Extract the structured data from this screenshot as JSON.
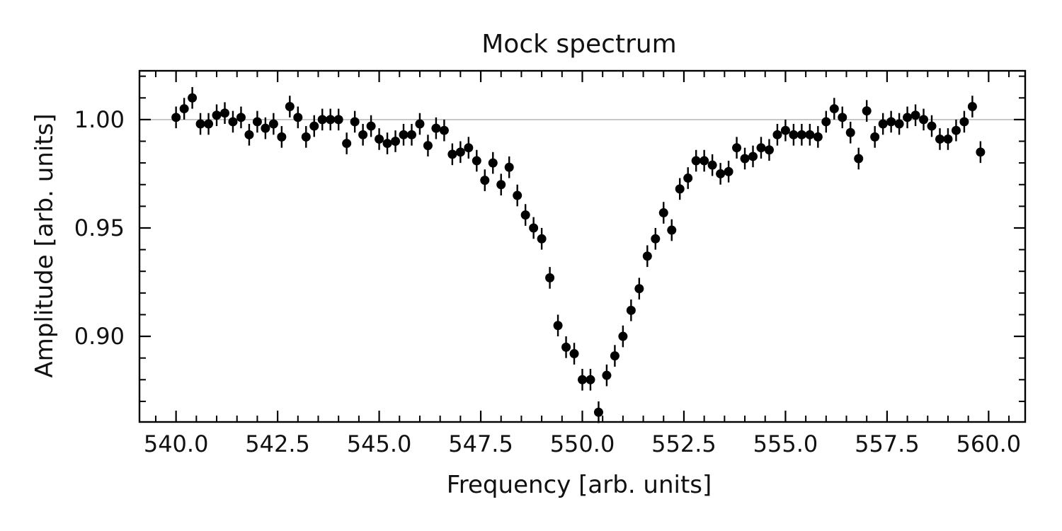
{
  "chart_data": {
    "type": "scatter",
    "title": "Mock spectrum",
    "xlabel": "Frequency [arb. units]",
    "ylabel": "Amplitude [arb. units]",
    "xlim": [
      539.1,
      560.9
    ],
    "ylim": [
      0.8605,
      1.0225
    ],
    "x_ticks": [
      540.0,
      542.5,
      545.0,
      547.5,
      550.0,
      552.5,
      555.0,
      557.5,
      560.0
    ],
    "x_tick_labels": [
      "540.0",
      "542.5",
      "545.0",
      "547.5",
      "550.0",
      "552.5",
      "555.0",
      "557.5",
      "560.0"
    ],
    "x_minor_step": 0.5,
    "y_ticks": [
      0.9,
      0.95,
      1.0
    ],
    "y_tick_labels": [
      "0.90",
      "0.95",
      "1.00"
    ],
    "y_minor_step": 0.01,
    "reference_line": 1.0,
    "error": 0.005,
    "grid": false,
    "colors": {
      "points": "#000000",
      "reference_line": "#bbbbbb",
      "axes": "#000000"
    },
    "series": [
      {
        "x": [
          540.0,
          540.2,
          540.4,
          540.6,
          540.8,
          541.0,
          541.2,
          541.4,
          541.6,
          541.8,
          542.0,
          542.2,
          542.4,
          542.6,
          542.8,
          543.0,
          543.2,
          543.4,
          543.6,
          543.8,
          544.0,
          544.2,
          544.4,
          544.6,
          544.8,
          545.0,
          545.2,
          545.4,
          545.6,
          545.8,
          546.0,
          546.2,
          546.4,
          546.6,
          546.8,
          547.0,
          547.2,
          547.4,
          547.6,
          547.8,
          548.0,
          548.2,
          548.4,
          548.6,
          548.8,
          549.0,
          549.2,
          549.4,
          549.6,
          549.8,
          550.0,
          550.2,
          550.4,
          550.6,
          550.8,
          551.0,
          551.2,
          551.4,
          551.6,
          551.8,
          552.0,
          552.2,
          552.4,
          552.6,
          552.8,
          553.0,
          553.2,
          553.4,
          553.6,
          553.8,
          554.0,
          554.2,
          554.4,
          554.6,
          554.8,
          555.0,
          555.2,
          555.4,
          555.6,
          555.8,
          556.0,
          556.2,
          556.4,
          556.6,
          556.8,
          557.0,
          557.2,
          557.4,
          557.6,
          557.8,
          558.0,
          558.2,
          558.4,
          558.6,
          558.8,
          559.0,
          559.2,
          559.4,
          559.6,
          559.8
        ],
        "y": [
          1.001,
          1.005,
          1.01,
          0.998,
          0.998,
          1.002,
          1.003,
          0.999,
          1.001,
          0.993,
          0.999,
          0.996,
          0.998,
          0.992,
          1.006,
          1.001,
          0.992,
          0.997,
          1.0,
          1.0,
          1.0,
          0.989,
          0.999,
          0.993,
          0.997,
          0.991,
          0.989,
          0.99,
          0.993,
          0.993,
          0.998,
          0.988,
          0.996,
          0.995,
          0.984,
          0.985,
          0.987,
          0.981,
          0.972,
          0.98,
          0.97,
          0.978,
          0.965,
          0.956,
          0.95,
          0.945,
          0.927,
          0.905,
          0.895,
          0.892,
          0.88,
          0.88,
          0.865,
          0.882,
          0.891,
          0.9,
          0.912,
          0.922,
          0.937,
          0.945,
          0.957,
          0.949,
          0.968,
          0.973,
          0.981,
          0.981,
          0.979,
          0.975,
          0.976,
          0.987,
          0.982,
          0.983,
          0.987,
          0.986,
          0.993,
          0.995,
          0.993,
          0.993,
          0.993,
          0.992,
          0.999,
          1.005,
          1.001,
          0.994,
          0.982,
          1.004,
          0.992,
          0.998,
          0.999,
          0.998,
          1.001,
          1.002,
          1.0,
          0.997,
          0.991,
          0.991,
          0.995,
          0.999,
          1.006,
          0.985
        ]
      }
    ]
  }
}
